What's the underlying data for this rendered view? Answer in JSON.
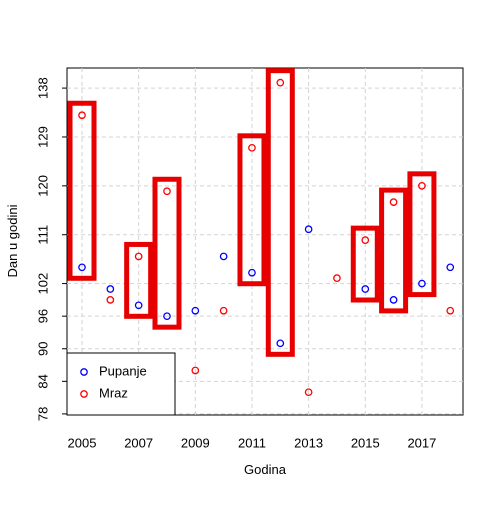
{
  "chart_data": {
    "type": "scatter",
    "x": [
      2005,
      2006,
      2007,
      2008,
      2009,
      2010,
      2011,
      2012,
      2013,
      2014,
      2015,
      2016,
      2017,
      2018
    ],
    "series": [
      {
        "name": "Pupanje",
        "color": "#0000ff",
        "values": [
          105,
          101,
          98,
          96,
          97,
          107,
          104,
          91,
          112,
          null,
          101,
          99,
          102,
          105
        ]
      },
      {
        "name": "Mraz",
        "color": "#ff0000",
        "values": [
          133,
          99,
          107,
          119,
          86,
          97,
          127,
          139,
          82,
          103,
          110,
          117,
          120,
          97
        ]
      }
    ],
    "xlabel": "Godina",
    "ylabel": "Dan u godini",
    "xlim": [
      2004.47,
      2018.45
    ],
    "xticks": [
      2005,
      2007,
      2009,
      2011,
      2013,
      2015,
      2017
    ],
    "ylim": [
      77.8,
      141.7
    ],
    "yticks": [
      78,
      84,
      90,
      96,
      102,
      111,
      120,
      129,
      138
    ],
    "grid": true,
    "legend": "bottom-left",
    "highlight_color": "#e60000"
  }
}
